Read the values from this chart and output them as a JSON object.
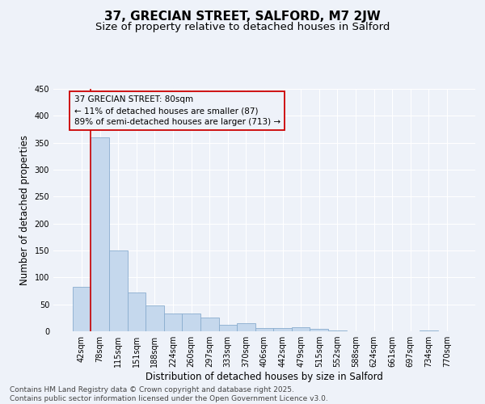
{
  "title": "37, GRECIAN STREET, SALFORD, M7 2JW",
  "subtitle": "Size of property relative to detached houses in Salford",
  "xlabel": "Distribution of detached houses by size in Salford",
  "ylabel": "Number of detached properties",
  "categories": [
    "42sqm",
    "78sqm",
    "115sqm",
    "151sqm",
    "188sqm",
    "224sqm",
    "260sqm",
    "297sqm",
    "333sqm",
    "370sqm",
    "406sqm",
    "442sqm",
    "479sqm",
    "515sqm",
    "552sqm",
    "588sqm",
    "624sqm",
    "661sqm",
    "697sqm",
    "734sqm",
    "770sqm"
  ],
  "values": [
    82,
    360,
    150,
    72,
    48,
    33,
    33,
    25,
    12,
    15,
    6,
    6,
    8,
    4,
    1,
    0,
    0,
    0,
    0,
    1,
    0
  ],
  "bar_color": "#c5d8ed",
  "bar_edge_color": "#8aadcf",
  "property_line_color": "#cc0000",
  "property_line_index": 1,
  "ylim": [
    0,
    450
  ],
  "yticks": [
    0,
    50,
    100,
    150,
    200,
    250,
    300,
    350,
    400,
    450
  ],
  "annotation_text": "37 GRECIAN STREET: 80sqm\n← 11% of detached houses are smaller (87)\n89% of semi-detached houses are larger (713) →",
  "annotation_box_color": "#cc0000",
  "bg_color": "#eef2f9",
  "grid_color": "#ffffff",
  "footer": "Contains HM Land Registry data © Crown copyright and database right 2025.\nContains public sector information licensed under the Open Government Licence v3.0.",
  "title_fontsize": 11,
  "subtitle_fontsize": 9.5,
  "axis_label_fontsize": 8.5,
  "tick_fontsize": 7,
  "annotation_fontsize": 7.5,
  "footer_fontsize": 6.5
}
